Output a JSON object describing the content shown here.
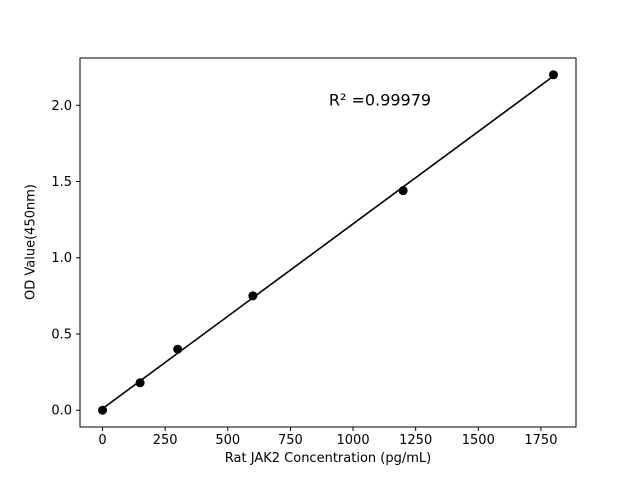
{
  "window": {
    "background": "#ffffff"
  },
  "chart_data": {
    "type": "scatter",
    "title": "",
    "xlabel": "Rat JAK2 Concentration (pg/mL)",
    "ylabel": "OD Value(450nm)",
    "annotation": {
      "text": "R² =0.99979",
      "r_squared": 0.99979
    },
    "x": [
      0,
      150,
      300,
      600,
      1200,
      1800
    ],
    "y": [
      0.0,
      0.18,
      0.4,
      0.75,
      1.44,
      2.2
    ],
    "fit_line": {
      "slope": 0.0012115,
      "intercept": 0.0106,
      "x_start": 0,
      "x_end": 1800
    },
    "xlim": [
      -90,
      1890
    ],
    "ylim": [
      -0.11,
      2.31
    ],
    "xticks": [
      0,
      250,
      500,
      750,
      1000,
      1250,
      1500,
      1750
    ],
    "xtick_labels": [
      "0",
      "250",
      "500",
      "750",
      "1000",
      "1250",
      "1500",
      "1750"
    ],
    "yticks": [
      0.0,
      0.5,
      1.0,
      1.5,
      2.0
    ],
    "ytick_labels": [
      "0.0",
      "0.5",
      "1.0",
      "1.5",
      "2.0"
    ],
    "grid": false,
    "legend": null,
    "marker_color": "#000000",
    "line_color": "#000000",
    "axis_color": "#000000",
    "plot_background": "#ffffff"
  }
}
